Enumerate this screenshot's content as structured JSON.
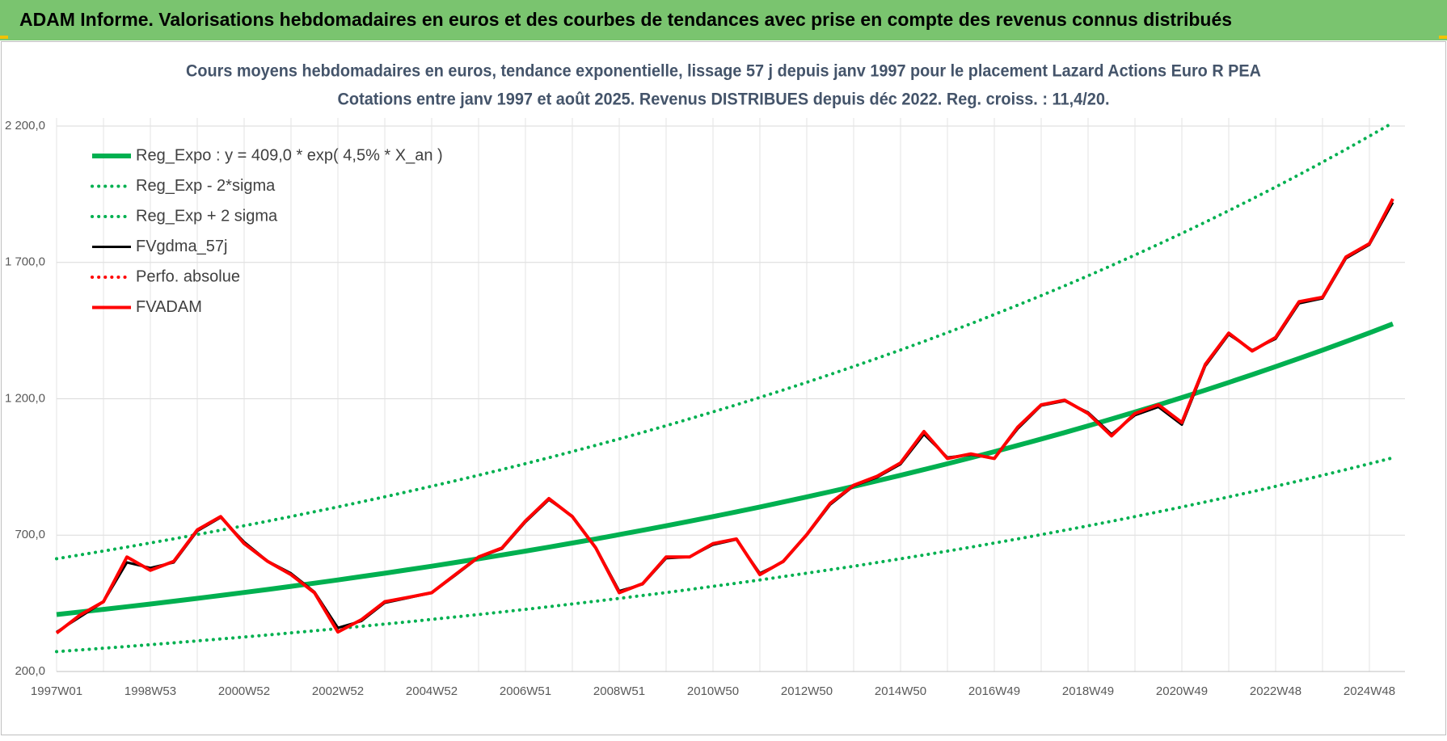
{
  "header": {
    "title": "ADAM Informe. Valorisations hebdomadaires en euros et des courbes de tendances avec prise en compte des revenus connus distribués"
  },
  "chart_data": {
    "type": "line",
    "title": "Cours moyens hebdomadaires en euros, tendance exponentielle, lissage 57 j depuis janv 1997  pour le placement Lazard Actions Euro R PEA",
    "subtitle": "Cotations entre janv 1997 et août 2025.  Revenus DISTRIBUES depuis déc 2022. Reg. croiss. : 11,4/20.",
    "categories": [
      "1997W01",
      null,
      null,
      null,
      "1998W53",
      null,
      null,
      null,
      "2000W52",
      null,
      null,
      null,
      "2002W52",
      null,
      null,
      null,
      "2004W52",
      null,
      null,
      null,
      "2006W51",
      null,
      null,
      null,
      "2008W51",
      null,
      null,
      null,
      "2010W50",
      null,
      null,
      null,
      "2012W50",
      null,
      null,
      null,
      "2014W50",
      null,
      null,
      null,
      "2016W49",
      null,
      null,
      null,
      "2018W49",
      null,
      null,
      null,
      "2020W49",
      null,
      null,
      null,
      "2022W48",
      null,
      null,
      null,
      "2024W48",
      null
    ],
    "ylim": [
      200,
      2280
    ],
    "yticks": [
      {
        "value": 200,
        "label": "200,0"
      },
      {
        "value": 700,
        "label": "700,0"
      },
      {
        "value": 1200,
        "label": "1 200,0"
      },
      {
        "value": 1700,
        "label": "1 700,0"
      },
      {
        "value": 2200,
        "label": "2 200,0"
      }
    ],
    "grid": true,
    "legend": "top-left",
    "series": [
      {
        "name": "Reg_Expo : y = 409,0 * exp( 4,5% *  X_an )",
        "color": "#00b050",
        "style": "solid",
        "values": [
          409.0,
          418.3,
          427.8,
          437.6,
          447.5,
          457.7,
          468.1,
          478.8,
          489.7,
          500.8,
          512.2,
          523.9,
          535.8,
          548.0,
          560.4,
          573.2,
          586.2,
          599.6,
          613.2,
          627.2,
          641.4,
          656.0,
          671.0,
          686.2,
          701.8,
          717.8,
          734.1,
          750.9,
          767.9,
          785.4,
          803.3,
          821.6,
          840.3,
          859.4,
          878.9,
          898.9,
          919.4,
          940.3,
          961.7,
          983.6,
          1006.0,
          1028.9,
          1052.3,
          1076.2,
          1100.7,
          1125.8,
          1151.4,
          1177.6,
          1204.4,
          1231.8,
          1259.8,
          1288.5,
          1317.8,
          1347.8,
          1378.4,
          1409.8,
          1441.9,
          1474.7
        ]
      },
      {
        "name": "Reg_Exp - 2*sigma",
        "color": "#00b050",
        "style": "dotted",
        "values": [
          272.8,
          279.0,
          285.3,
          291.9,
          298.5,
          305.3,
          312.2,
          319.4,
          326.6,
          334.0,
          341.6,
          349.4,
          357.4,
          365.5,
          373.8,
          382.3,
          391.0,
          399.9,
          409.0,
          418.3,
          427.8,
          437.6,
          447.6,
          457.7,
          468.1,
          478.8,
          489.6,
          500.8,
          512.2,
          523.9,
          535.8,
          548.0,
          560.5,
          573.2,
          586.2,
          599.6,
          613.2,
          627.2,
          641.5,
          656.1,
          671.0,
          686.3,
          701.9,
          717.8,
          734.2,
          750.9,
          768.0,
          785.5,
          803.3,
          821.6,
          840.3,
          859.4,
          879.0,
          899.0,
          919.4,
          940.3,
          961.7,
          983.6
        ]
      },
      {
        "name": "Reg_Exp + 2 sigma",
        "color": "#00b050",
        "style": "dotted",
        "values": [
          613.5,
          627.5,
          641.7,
          656.4,
          671.3,
          686.6,
          702.2,
          718.2,
          734.6,
          751.2,
          768.3,
          785.9,
          803.7,
          822.0,
          840.6,
          859.8,
          879.3,
          899.4,
          919.8,
          940.8,
          962.1,
          984.0,
          1006.5,
          1029.3,
          1052.7,
          1076.7,
          1101.2,
          1126.4,
          1151.9,
          1178.1,
          1205.0,
          1232.4,
          1260.5,
          1289.1,
          1318.4,
          1348.4,
          1379.1,
          1410.5,
          1442.6,
          1475.4,
          1509.0,
          1543.4,
          1578.5,
          1614.3,
          1651.1,
          1688.7,
          1727.1,
          1766.4,
          1806.6,
          1847.7,
          1889.7,
          1932.8,
          1976.7,
          2021.7,
          2067.6,
          2114.7,
          2162.9,
          2212.1
        ]
      },
      {
        "name": "FVgdma_57j",
        "color": "#000000",
        "style": "solid",
        "values": [
          345,
          400,
          455,
          600,
          580,
          600,
          715,
          765,
          675,
          605,
          560,
          492,
          360,
          385,
          452,
          470,
          488,
          552,
          618,
          650,
          748,
          830,
          770,
          655,
          495,
          520,
          615,
          620,
          665,
          684,
          560,
          602,
          700,
          812,
          880,
          912,
          960,
          1070,
          985,
          995,
          982,
          1090,
          1175,
          1192,
          1150,
          1070,
          1140,
          1170,
          1105,
          1320,
          1436,
          1378,
          1420,
          1550,
          1568,
          1715,
          1765,
          1920
        ]
      },
      {
        "name": "Perfo. absolue",
        "color": "#ff0000",
        "style": "dotted",
        "values": [
          null,
          null,
          null,
          null,
          null,
          null,
          null,
          null,
          null,
          null,
          null,
          null,
          null,
          null,
          null,
          null,
          null,
          null,
          null,
          null,
          null,
          null,
          null,
          null,
          null,
          null,
          null,
          null,
          null,
          null,
          null,
          null,
          null,
          null,
          null,
          null,
          null,
          null,
          null,
          null,
          null,
          null,
          null,
          null,
          null,
          null,
          null,
          null,
          null,
          null,
          null,
          null,
          null,
          null,
          null,
          null,
          null,
          null
        ]
      },
      {
        "name": "FVADAM",
        "color": "#ff0000",
        "style": "solid",
        "values": [
          341,
          407,
          456,
          620,
          571,
          604,
          719,
          768,
          669,
          604,
          555,
          489,
          345,
          390,
          456,
          472,
          489,
          555,
          620,
          653,
          752,
          834,
          768,
          653,
          489,
          522,
          620,
          620,
          669,
          686,
          555,
          604,
          702,
          817,
          883,
          916,
          965,
          1080,
          981,
          998,
          981,
          1096,
          1178,
          1195,
          1146,
          1064,
          1146,
          1178,
          1113,
          1326,
          1441,
          1375,
          1425,
          1556,
          1572,
          1720,
          1769,
          1933
        ]
      }
    ]
  }
}
